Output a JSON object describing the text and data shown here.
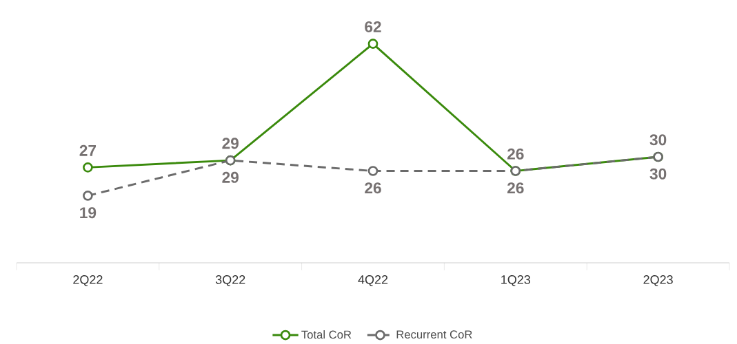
{
  "chart_data": {
    "type": "line",
    "categories": [
      "2Q22",
      "3Q22",
      "4Q22",
      "1Q23",
      "2Q23"
    ],
    "series": [
      {
        "name": "Total CoR",
        "color": "#3a8a0c",
        "values": [
          27,
          29,
          62,
          26,
          30
        ],
        "line_style": "solid"
      },
      {
        "name": "Recurrent CoR",
        "color": "#6b6b6b",
        "values": [
          19,
          29,
          26,
          26,
          30
        ],
        "line_style": "dashed"
      }
    ],
    "marker": "circle",
    "data_labels": true,
    "legend": "bottom"
  }
}
